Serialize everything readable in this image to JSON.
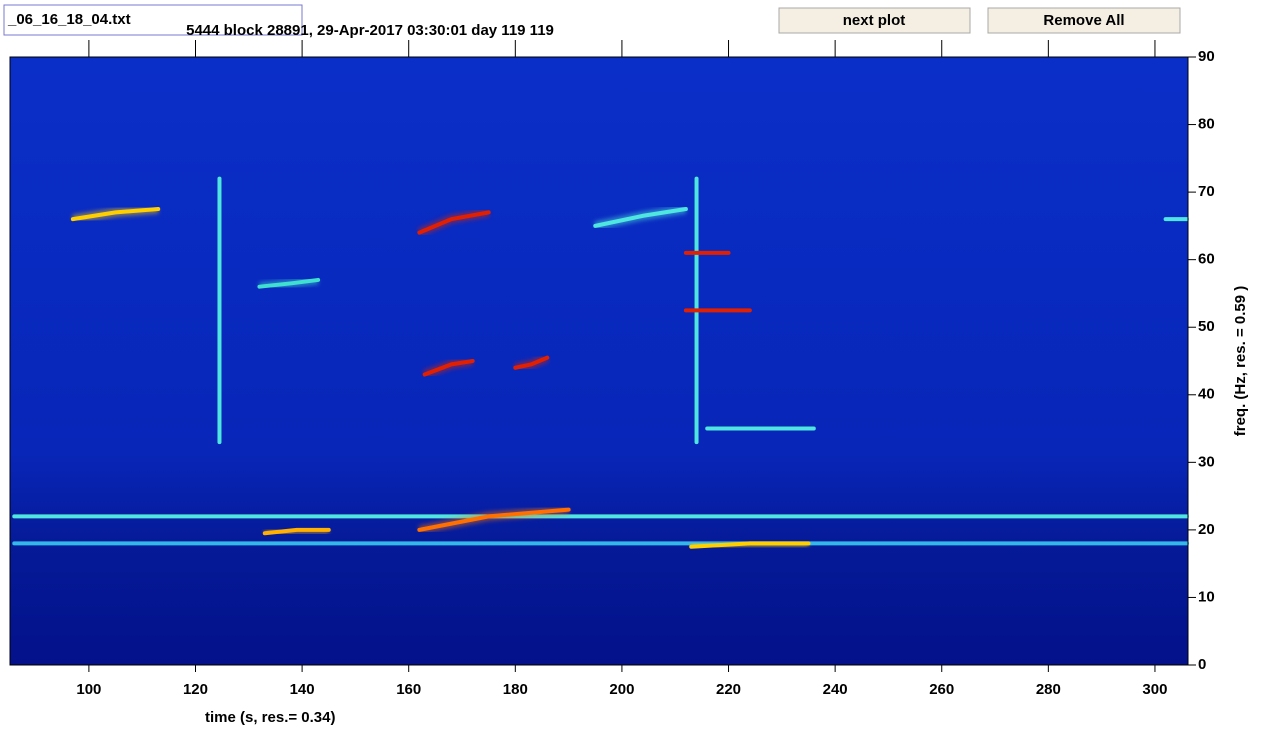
{
  "file_field": "_06_16_18_04.txt",
  "buttons": [
    "next plot",
    "Remove All"
  ],
  "chart_data": {
    "type": "spectrogram",
    "title": "5444 block 28891, 29-Apr-2017 03:30:01 day 119  119",
    "xlabel": "time (s, res.= 0.34)",
    "ylabel": "freq. (Hz, res. = 0.59 )",
    "xlim": [
      85.2,
      306.2
    ],
    "ylim": [
      0,
      90
    ],
    "xticks": [
      100,
      120,
      140,
      160,
      180,
      200,
      220,
      240,
      260,
      280,
      300
    ],
    "yticks": [
      0,
      10,
      20,
      30,
      40,
      50,
      60,
      70,
      80,
      90
    ],
    "tracks": [
      {
        "color": "#4fe6e0",
        "x": [
          86,
          306
        ],
        "y": [
          22,
          22
        ]
      },
      {
        "color": "#33b8e8",
        "x": [
          86,
          306
        ],
        "y": [
          18,
          18
        ]
      },
      {
        "color": "#4fe6e0",
        "x": [
          124.5,
          124.5
        ],
        "y": [
          33,
          72
        ]
      },
      {
        "color": "#4fe6e0",
        "x": [
          214,
          214
        ],
        "y": [
          33,
          72
        ]
      },
      {
        "color": "#ffd000",
        "x": [
          97,
          105,
          113
        ],
        "y": [
          66,
          67,
          67.5
        ]
      },
      {
        "color": "#40e0d0",
        "x": [
          132,
          138,
          143
        ],
        "y": [
          56,
          56.5,
          57
        ]
      },
      {
        "color": "#ffb000",
        "x": [
          133,
          139,
          145
        ],
        "y": [
          19.5,
          20,
          20
        ]
      },
      {
        "color": "#e02000",
        "x": [
          162,
          168,
          175
        ],
        "y": [
          64,
          66,
          67
        ]
      },
      {
        "color": "#e02000",
        "x": [
          163,
          168,
          172
        ],
        "y": [
          43,
          44.5,
          45
        ]
      },
      {
        "color": "#e02000",
        "x": [
          180,
          183,
          186
        ],
        "y": [
          44,
          44.5,
          45.5
        ]
      },
      {
        "color": "#ff7000",
        "x": [
          162,
          175,
          190
        ],
        "y": [
          20,
          22,
          23
        ]
      },
      {
        "color": "#e02000",
        "x": [
          212,
          216,
          220
        ],
        "y": [
          61,
          61,
          61
        ]
      },
      {
        "color": "#e02000",
        "x": [
          212,
          218,
          224
        ],
        "y": [
          52.5,
          52.5,
          52.5
        ]
      },
      {
        "color": "#ffd000",
        "x": [
          213,
          224,
          235
        ],
        "y": [
          17.5,
          18,
          18
        ]
      },
      {
        "color": "#4fe6e0",
        "x": [
          216,
          226,
          236
        ],
        "y": [
          35,
          35,
          35
        ]
      },
      {
        "color": "#4fe6e0",
        "x": [
          195,
          204,
          212
        ],
        "y": [
          65,
          66.5,
          67.5
        ]
      },
      {
        "color": "#4fe6e0",
        "x": [
          302,
          306
        ],
        "y": [
          66,
          66
        ]
      }
    ]
  }
}
